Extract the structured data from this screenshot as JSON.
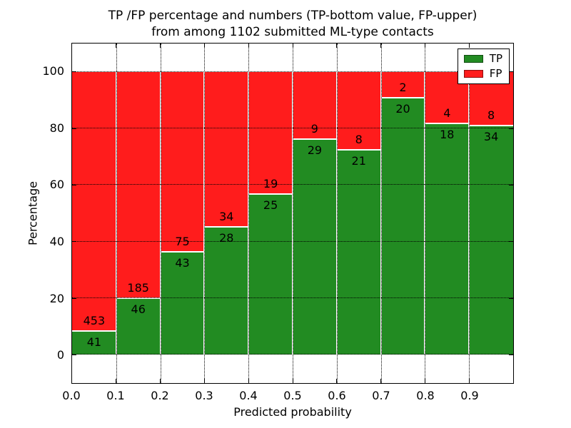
{
  "title": {
    "line1": "TP /FP percentage and numbers (TP-bottom value, FP-upper)",
    "line2": "from among 1102 submitted ML-type contacts"
  },
  "axes": {
    "xlabel": "Predicted probability",
    "ylabel": "Percentage",
    "x_tick_labels": [
      "0.0",
      "0.1",
      "0.2",
      "0.3",
      "0.4",
      "0.5",
      "0.6",
      "0.7",
      "0.8",
      "0.9"
    ],
    "y_tick_labels": [
      "0",
      "20",
      "40",
      "60",
      "80",
      "100"
    ],
    "y_tick_values": [
      0,
      20,
      40,
      60,
      80,
      100
    ]
  },
  "legend": {
    "items": [
      {
        "label": "TP",
        "color": "#228b22"
      },
      {
        "label": "FP",
        "color": "#ff1c1c"
      }
    ]
  },
  "colors": {
    "tp": "#228b22",
    "fp": "#ff1c1c",
    "grid": "#000000",
    "background": "#ffffff"
  },
  "chart_data": {
    "type": "bar",
    "stacked": true,
    "normalized_to_percent": true,
    "title": "TP /FP percentage and numbers (TP-bottom value, FP-upper) from among 1102 submitted ML-type contacts",
    "xlabel": "Predicted probability",
    "ylabel": "Percentage",
    "xlim": [
      0.0,
      1.0
    ],
    "ylim": [
      -10,
      110
    ],
    "grid": true,
    "legend_position": "upper right",
    "total_contacts": 1102,
    "bin_edges": [
      0.0,
      0.1,
      0.2,
      0.3,
      0.4,
      0.5,
      0.6,
      0.7,
      0.8,
      0.9,
      1.0
    ],
    "categories": [
      "0.0-0.1",
      "0.1-0.2",
      "0.2-0.3",
      "0.3-0.4",
      "0.4-0.5",
      "0.5-0.6",
      "0.6-0.7",
      "0.7-0.8",
      "0.8-0.9",
      "0.9-1.0"
    ],
    "series": [
      {
        "name": "TP",
        "color": "#228b22",
        "counts": [
          41,
          46,
          43,
          28,
          25,
          29,
          21,
          20,
          18,
          34
        ]
      },
      {
        "name": "FP",
        "color": "#ff1c1c",
        "counts": [
          453,
          185,
          75,
          34,
          19,
          9,
          8,
          2,
          4,
          8
        ]
      }
    ],
    "tp_percent_of_bin": [
      8.3,
      19.9,
      36.4,
      45.2,
      56.8,
      76.3,
      72.4,
      90.9,
      81.8,
      81.0
    ]
  }
}
